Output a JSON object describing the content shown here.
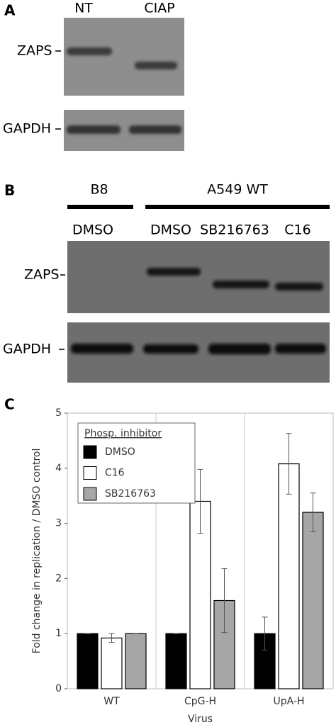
{
  "panel_a": {
    "letter": "A",
    "lanes": [
      "NT",
      "CIAP"
    ],
    "rows": [
      "ZAPS",
      "GAPDH"
    ]
  },
  "panel_b": {
    "letter": "B",
    "groups": [
      "B8",
      "A549 WT"
    ],
    "lanes": [
      "DMSO",
      "DMSO",
      "SB216763",
      "C16"
    ],
    "rows": [
      "ZAPS",
      "GAPDH"
    ]
  },
  "chart_data": {
    "type": "bar",
    "panel": "C",
    "y_label": "Fold change in replication / DMSO control",
    "x_label": "Virus",
    "legend_title": "Phosp. inhibitor",
    "categories": [
      "WT",
      "CpG-H",
      "UpA-H"
    ],
    "series": [
      {
        "name": "DMSO",
        "color": "#000000",
        "values": [
          1,
          1,
          1
        ],
        "errors": [
          0,
          0,
          0.3
        ]
      },
      {
        "name": "C16",
        "color": "#ffffff",
        "values": [
          0.92,
          3.4,
          4.08
        ],
        "errors": [
          0.08,
          0.58,
          0.55
        ]
      },
      {
        "name": "SB216763",
        "color": "#a6a6a6",
        "values": [
          1,
          1.6,
          3.2
        ],
        "errors": [
          0,
          0.58,
          0.35
        ]
      }
    ],
    "ylim": [
      0,
      5
    ],
    "yticks": [
      0,
      1,
      2,
      3,
      4,
      5
    ]
  }
}
